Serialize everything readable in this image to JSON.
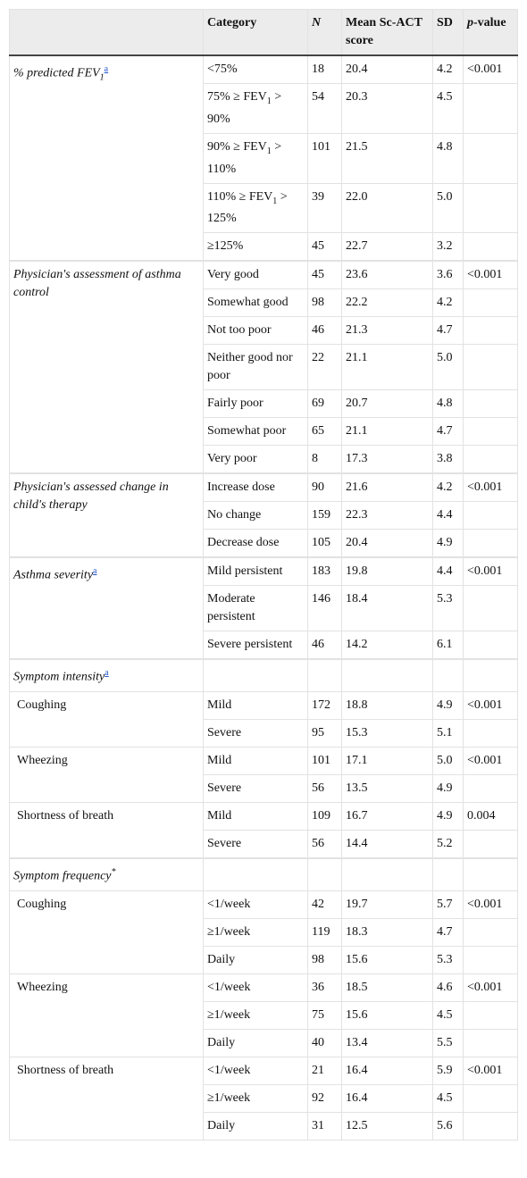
{
  "header": [
    "Category",
    [
      {
        "text": "N",
        "style": "italic"
      }
    ],
    "Mean Sc-ACT score",
    "SD",
    [
      {
        "text": "p",
        "style": "italic"
      },
      {
        "text": "-value"
      }
    ]
  ],
  "groups": [
    {
      "label": [
        {
          "text": "% predicted FEV"
        },
        {
          "text": "1",
          "style": "sub"
        },
        {
          "text": "a",
          "style": "link-sup"
        }
      ],
      "italic": true,
      "rows": [
        [
          "<75%",
          "18",
          "20.4",
          "4.2",
          "<0.001"
        ],
        [
          [
            {
              "text": "75% ≥ FEV"
            },
            {
              "text": "1",
              "style": "sub"
            },
            {
              "text": " > 90%"
            }
          ],
          "54",
          "20.3",
          "4.5",
          null
        ],
        [
          [
            {
              "text": "90% ≥ FEV"
            },
            {
              "text": "1",
              "style": "sub"
            },
            {
              "text": " > 110%"
            }
          ],
          "101",
          "21.5",
          "4.8",
          null
        ],
        [
          [
            {
              "text": "110% ≥ FEV"
            },
            {
              "text": "1",
              "style": "sub"
            },
            {
              "text": " > 125%"
            }
          ],
          "39",
          "22.0",
          "5.0",
          null
        ],
        [
          "≥125%",
          "45",
          "22.7",
          "3.2",
          null
        ]
      ]
    },
    {
      "label": [
        {
          "text": "Physician's assessment of asthma control"
        }
      ],
      "italic": true,
      "rows": [
        [
          "Very good",
          "45",
          "23.6",
          "3.6",
          "<0.001"
        ],
        [
          "Somewhat good",
          "98",
          "22.2",
          "4.2",
          null
        ],
        [
          "Not too poor",
          "46",
          "21.3",
          "4.7",
          null
        ],
        [
          "Neither good nor poor",
          "22",
          "21.1",
          "5.0",
          null
        ],
        [
          "Fairly poor",
          "69",
          "20.7",
          "4.8",
          null
        ],
        [
          "Somewhat poor",
          "65",
          "21.1",
          "4.7",
          null
        ],
        [
          "Very poor",
          "8",
          "17.3",
          "3.8",
          null
        ]
      ]
    },
    {
      "label": [
        {
          "text": "Physician's assessed change in child's therapy"
        }
      ],
      "italic": true,
      "rows": [
        [
          "Increase dose",
          "90",
          "21.6",
          "4.2",
          "<0.001"
        ],
        [
          "No change",
          "159",
          "22.3",
          "4.4",
          null
        ],
        [
          "Decrease dose",
          "105",
          "20.4",
          "4.9",
          null
        ]
      ]
    },
    {
      "label": [
        {
          "text": "Asthma severity"
        },
        {
          "text": "a",
          "style": "link-sup"
        }
      ],
      "italic": true,
      "rows": [
        [
          "Mild persistent",
          "183",
          "19.8",
          "4.4",
          "<0.001"
        ],
        [
          "Moderate persistent",
          "146",
          "18.4",
          "5.3",
          null
        ],
        [
          "Severe persistent",
          "46",
          "14.2",
          "6.1",
          null
        ]
      ]
    },
    {
      "label": [
        {
          "text": "Symptom intensity"
        },
        {
          "text": "a",
          "style": "link-sup"
        }
      ],
      "italic": true,
      "subgroups": [
        {
          "label": "Coughing",
          "rows": [
            [
              "Mild",
              "172",
              "18.8",
              "4.9",
              "<0.001"
            ],
            [
              "Severe",
              "95",
              "15.3",
              "5.1",
              null
            ]
          ]
        },
        {
          "label": "Wheezing",
          "rows": [
            [
              "Mild",
              "101",
              "17.1",
              "5.0",
              "<0.001"
            ],
            [
              "Severe",
              "56",
              "13.5",
              "4.9",
              null
            ]
          ]
        },
        {
          "label": "Shortness of breath",
          "rows": [
            [
              "Mild",
              "109",
              "16.7",
              "4.9",
              "0.004"
            ],
            [
              "Severe",
              "56",
              "14.4",
              "5.2",
              null
            ]
          ]
        }
      ]
    },
    {
      "label": [
        {
          "text": "Symptom frequency"
        },
        {
          "text": "*",
          "style": "sup"
        }
      ],
      "italic": true,
      "subgroups": [
        {
          "label": "Coughing",
          "rows": [
            [
              "<1/week",
              "42",
              "19.7",
              "5.7",
              "<0.001"
            ],
            [
              "≥1/week",
              "119",
              "18.3",
              "4.7",
              null
            ],
            [
              "Daily",
              "98",
              "15.6",
              "5.3",
              null
            ]
          ]
        },
        {
          "label": "Wheezing",
          "rows": [
            [
              "<1/week",
              "36",
              "18.5",
              "4.6",
              "<0.001"
            ],
            [
              "≥1/week",
              "75",
              "15.6",
              "4.5",
              null
            ],
            [
              "Daily",
              "40",
              "13.4",
              "5.5",
              null
            ]
          ]
        },
        {
          "label": "Shortness of breath",
          "rows": [
            [
              "<1/week",
              "21",
              "16.4",
              "5.9",
              "<0.001"
            ],
            [
              "≥1/week",
              "92",
              "16.4",
              "4.5",
              null
            ],
            [
              "Daily",
              "31",
              "12.5",
              "5.6",
              null
            ]
          ]
        }
      ]
    }
  ]
}
